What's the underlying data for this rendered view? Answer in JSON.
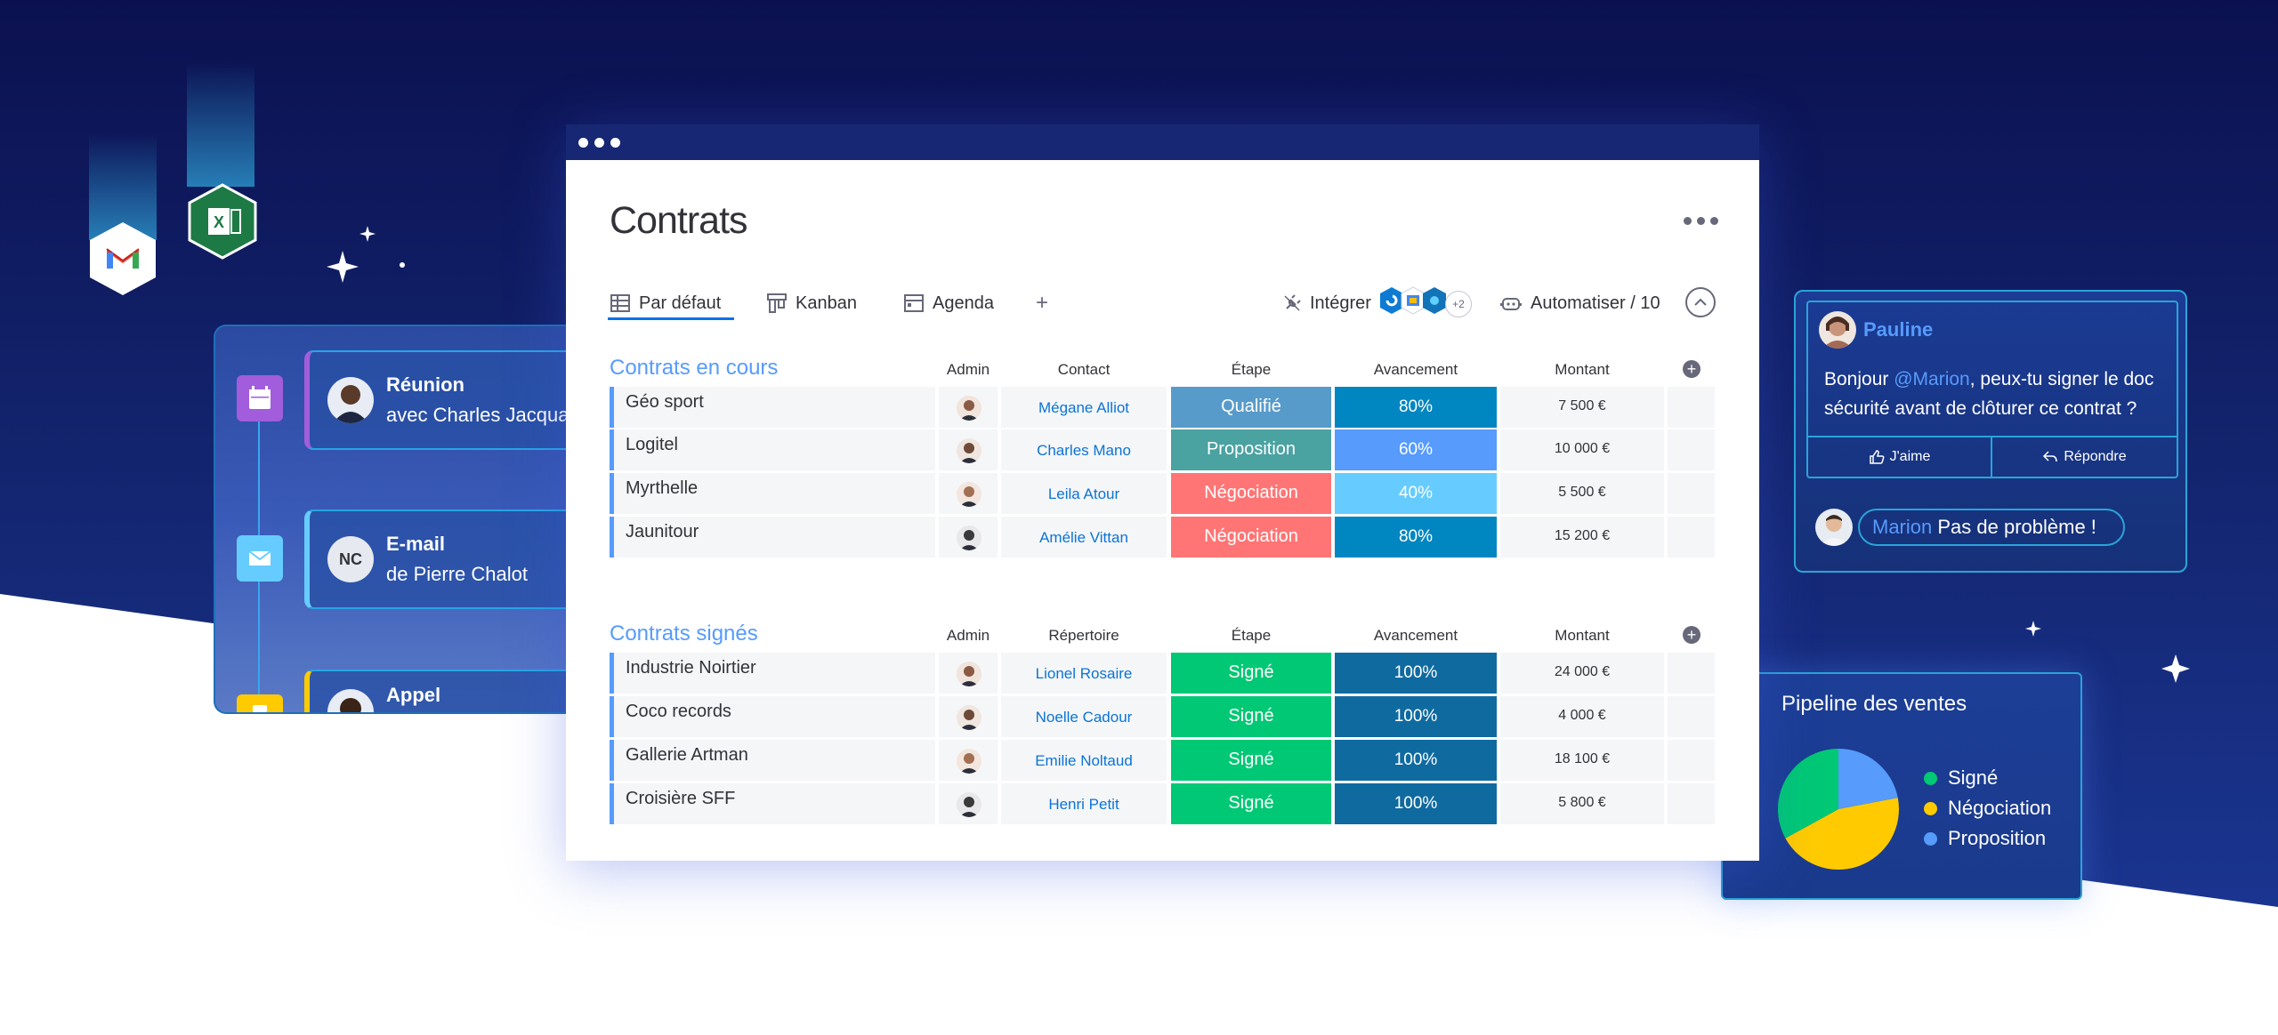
{
  "window": {
    "title": "Contrats",
    "tabs": [
      {
        "label": "Par défaut",
        "icon": "table-icon",
        "active": true
      },
      {
        "label": "Kanban",
        "icon": "kanban-icon"
      },
      {
        "label": "Agenda",
        "icon": "calendar-icon"
      }
    ],
    "add_view_label": "+",
    "integrate_label": "Intégrer",
    "integrations_more": "+2",
    "automate_label": "Automatiser / 10"
  },
  "colors": {
    "accent": "#0073ea",
    "group": "#579bfc",
    "nav_dark": "#172774"
  },
  "groups": [
    {
      "title": "Contrats en cours",
      "headers": {
        "admin": "Admin",
        "contact": "Contact",
        "etape": "Étape",
        "avancement": "Avancement",
        "montant": "Montant"
      },
      "rows": [
        {
          "name": "Géo sport",
          "contact": "Mégane Alliot",
          "etape": "Qualifié",
          "etape_color": "#579bca",
          "avancement": "80%",
          "prog_color": "#0086c0",
          "montant": "7 500 €"
        },
        {
          "name": "Logitel",
          "contact": "Charles Mano",
          "etape": "Proposition",
          "etape_color": "#4aa2a1",
          "avancement": "60%",
          "prog_color": "#579bfc",
          "montant": "10 000 €"
        },
        {
          "name": "Myrthelle",
          "contact": "Leila Atour",
          "etape": "Négociation",
          "etape_color": "#ff7575",
          "avancement": "40%",
          "prog_color": "#66ccff",
          "montant": "5 500 €"
        },
        {
          "name": "Jaunitour",
          "contact": "Amélie Vittan",
          "etape": "Négociation",
          "etape_color": "#ff7575",
          "avancement": "80%",
          "prog_color": "#0086c0",
          "montant": "15 200 €"
        }
      ]
    },
    {
      "title": "Contrats signés",
      "headers": {
        "admin": "Admin",
        "contact": "Répertoire",
        "etape": "Étape",
        "avancement": "Avancement",
        "montant": "Montant"
      },
      "rows": [
        {
          "name": "Industrie Noirtier",
          "contact": "Lionel Rosaire",
          "etape": "Signé",
          "etape_color": "#00c875",
          "avancement": "100%",
          "prog_color": "#0f6aa0",
          "montant": "24 000 €"
        },
        {
          "name": "Coco records",
          "contact": "Noelle Cadour",
          "etape": "Signé",
          "etape_color": "#00c875",
          "avancement": "100%",
          "prog_color": "#0f6aa0",
          "montant": "4 000 €"
        },
        {
          "name": "Gallerie Artman",
          "contact": "Emilie Noltaud",
          "etape": "Signé",
          "etape_color": "#00c875",
          "avancement": "100%",
          "prog_color": "#0f6aa0",
          "montant": "18 100 €"
        },
        {
          "name": "Croisière SFF",
          "contact": "Henri Petit",
          "etape": "Signé",
          "etape_color": "#00c875",
          "avancement": "100%",
          "prog_color": "#0f6aa0",
          "montant": "5 800 €"
        }
      ]
    }
  ],
  "activity": [
    {
      "type": "Réunion",
      "detail": "avec Charles Jacquard",
      "icon": "calendar-icon",
      "color": "#a25ddc"
    },
    {
      "type": "E-mail",
      "detail": "de Pierre Chalot",
      "initials": "NC",
      "icon": "mail-icon",
      "color": "#66ccff"
    },
    {
      "type": "Appel",
      "icon": "phone-icon",
      "color": "#ffcb00"
    }
  ],
  "chat": {
    "author": "Pauline",
    "message_pre": "Bonjour ",
    "mention": "@Marion",
    "message_post": ", peux-tu signer le doc sécurité avant de clôturer ce contrat ?",
    "like_label": "J'aime",
    "reply_label": "Répondre",
    "reply_mention": "Marion",
    "reply_text": " Pas de problème !"
  },
  "chart_data": {
    "type": "pie",
    "title": "Pipeline des ventes",
    "categories": [
      "Signé",
      "Négociation",
      "Proposition"
    ],
    "values": [
      33,
      45,
      22
    ],
    "colors": [
      "#00c875",
      "#ffcb00",
      "#579bfc"
    ],
    "legend": "right"
  },
  "apps": [
    {
      "icon": "gmail-icon"
    },
    {
      "icon": "excel-icon"
    }
  ]
}
